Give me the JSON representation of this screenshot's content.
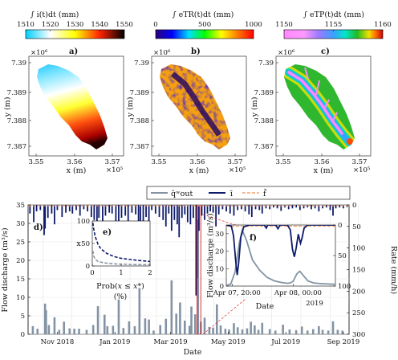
{
  "chart_data": [
    {
      "type": "heatmap",
      "panel": "a)",
      "colorbar_title": "∫ i(t)dt (mm)",
      "colorbar_ticks": [
        "1510",
        "1520",
        "1530",
        "1540",
        "1550"
      ],
      "colorbar_range": [
        1510,
        1550
      ],
      "colormap": [
        "#00cfff",
        "#ffffff",
        "#ffff00",
        "#ff2200",
        "#000000"
      ],
      "xlabel": "x (m)",
      "ylabel": "y (m)",
      "x_ticks": [
        "3.55",
        "3.56",
        "3.57"
      ],
      "x_exponent": "×10⁵",
      "y_ticks": [
        "7.39",
        "7.389",
        "7.388",
        "7.387"
      ],
      "y_exponent": "×10⁶"
    },
    {
      "type": "heatmap",
      "panel": "b)",
      "colorbar_title": "∫ eTR(t)dt (mm)",
      "colorbar_ticks": [
        "0",
        "500",
        "1000"
      ],
      "colorbar_range": [
        0,
        1000
      ],
      "colormap": [
        "#2a007a",
        "#0000ff",
        "#00e0ff",
        "#00ff00",
        "#ffff00",
        "#ff7700",
        "#ff0000"
      ],
      "xlabel": "x (m)",
      "ylabel": "y (m)",
      "x_ticks": [
        "3.55",
        "3.56",
        "3.57"
      ],
      "x_exponent": "×10⁵",
      "y_ticks": [
        "7.39",
        "7.389",
        "7.388",
        "7.387"
      ],
      "y_exponent": "×10⁶"
    },
    {
      "type": "heatmap",
      "panel": "c)",
      "colorbar_title": "∫ eTP(t)dt (mm)",
      "colorbar_ticks": [
        "1150",
        "1155",
        "1160"
      ],
      "colorbar_range": [
        1150,
        1160
      ],
      "colormap": [
        "#ff88ff",
        "#9b7bff",
        "#3aa0ff",
        "#00e6c8",
        "#22bb22",
        "#f5e000",
        "#ff6a00",
        "#cc0000"
      ],
      "xlabel": "x (m)",
      "ylabel": "y (m)",
      "x_ticks": [
        "3.55",
        "3.56",
        "3.57"
      ],
      "x_exponent": "×10⁵",
      "y_ticks": [
        "7.39",
        "7.389",
        "7.388",
        "7.387"
      ],
      "y_exponent": "×10⁶"
    },
    {
      "type": "bar",
      "panel": "d)",
      "legend": [
        "q̂ʷout",
        "ī",
        "f̄"
      ],
      "colors": {
        "discharge": "#8393a4",
        "rain": "#0d1a6b",
        "f": "#f2a36a",
        "highlight": "#e03030"
      },
      "xlabel": "Date",
      "ylabel": "Flow discharge (m³/s)",
      "ylabel_right": "Rate (mm/h)",
      "ylim": [
        0,
        35
      ],
      "ylim_right": [
        300,
        0
      ],
      "y_ticks": [
        "0",
        "5",
        "10",
        "15",
        "20",
        "25",
        "30",
        "35"
      ],
      "y_ticks_right": [
        "0",
        "50",
        "100",
        "150",
        "200",
        "250",
        "300"
      ],
      "x_ticks": [
        "Nov 2018",
        "Jan 2019",
        "Mar 2019",
        "May 2019",
        "Jul 2019",
        "Sep 2019"
      ],
      "x_range_days": [
        0,
        340
      ],
      "discharge_peaks": [
        [
          5,
          2.2
        ],
        [
          10,
          1.5
        ],
        [
          18,
          8.3
        ],
        [
          19,
          6.5
        ],
        [
          22,
          2.5
        ],
        [
          28,
          4.6
        ],
        [
          33,
          1.2
        ],
        [
          38,
          3.4
        ],
        [
          44,
          1.6
        ],
        [
          49,
          1.5
        ],
        [
          54,
          1.5
        ],
        [
          62,
          1.2
        ],
        [
          69,
          2.5
        ],
        [
          74,
          7.6
        ],
        [
          81,
          5.3
        ],
        [
          84,
          2.2
        ],
        [
          90,
          2.3
        ],
        [
          96,
          9.4
        ],
        [
          101,
          1.7
        ],
        [
          107,
          3.5
        ],
        [
          113,
          2.2
        ],
        [
          118,
          12.5
        ],
        [
          124,
          4.3
        ],
        [
          128,
          4.0
        ],
        [
          133,
          1.0
        ],
        [
          140,
          2.5
        ],
        [
          146,
          4.2
        ],
        [
          152,
          14.6
        ],
        [
          157,
          5.6
        ],
        [
          161,
          8.6
        ],
        [
          166,
          3.7
        ],
        [
          171,
          2.3
        ],
        [
          173,
          7.5
        ],
        [
          177,
          5.4
        ],
        [
          180,
          31
        ],
        [
          183,
          3.4
        ],
        [
          187,
          4.5
        ],
        [
          192,
          2.0
        ],
        [
          196,
          1.8
        ],
        [
          200,
          8.1
        ],
        [
          204,
          2.4
        ],
        [
          209,
          1.5
        ],
        [
          213,
          1.3
        ],
        [
          218,
          3.0
        ],
        [
          222,
          1.9
        ],
        [
          227,
          1.3
        ],
        [
          232,
          1.6
        ],
        [
          236,
          3.4
        ],
        [
          240,
          2.4
        ],
        [
          244,
          1.2
        ],
        [
          248,
          3.1
        ],
        [
          256,
          1.4
        ],
        [
          262,
          1.0
        ],
        [
          270,
          2.6
        ],
        [
          277,
          1.3
        ],
        [
          284,
          1.1
        ],
        [
          290,
          2.1
        ],
        [
          296,
          1.0
        ],
        [
          302,
          1.4
        ],
        [
          308,
          2.2
        ],
        [
          312,
          1.2
        ],
        [
          318,
          1.0
        ],
        [
          323,
          3.5
        ],
        [
          328,
          1.2
        ],
        [
          333,
          1.0
        ]
      ],
      "rain_spikes": [
        [
          2,
          20
        ],
        [
          6,
          40
        ],
        [
          9,
          15
        ],
        [
          13,
          12
        ],
        [
          17,
          70
        ],
        [
          18,
          55
        ],
        [
          21,
          30
        ],
        [
          25,
          20
        ],
        [
          28,
          45
        ],
        [
          31,
          12
        ],
        [
          36,
          28
        ],
        [
          40,
          18
        ],
        [
          44,
          15
        ],
        [
          47,
          20
        ],
        [
          51,
          12
        ],
        [
          55,
          25
        ],
        [
          59,
          10
        ],
        [
          63,
          15
        ],
        [
          67,
          28
        ],
        [
          70,
          35
        ],
        [
          73,
          58
        ],
        [
          75,
          30
        ],
        [
          79,
          42
        ],
        [
          82,
          25
        ],
        [
          86,
          18
        ],
        [
          89,
          20
        ],
        [
          93,
          40
        ],
        [
          96,
          85
        ],
        [
          99,
          30
        ],
        [
          103,
          25
        ],
        [
          106,
          45
        ],
        [
          110,
          18
        ],
        [
          114,
          22
        ],
        [
          117,
          110
        ],
        [
          119,
          40
        ],
        [
          122,
          55
        ],
        [
          125,
          28
        ],
        [
          128,
          40
        ],
        [
          131,
          12
        ],
        [
          135,
          20
        ],
        [
          139,
          28
        ],
        [
          143,
          35
        ],
        [
          146,
          50
        ],
        [
          149,
          20
        ],
        [
          152,
          60
        ],
        [
          155,
          35
        ],
        [
          158,
          45
        ],
        [
          160,
          75
        ],
        [
          163,
          30
        ],
        [
          166,
          22
        ],
        [
          169,
          40
        ],
        [
          172,
          45
        ],
        [
          175,
          30
        ],
        [
          178,
          210
        ],
        [
          179,
          170
        ],
        [
          181,
          60
        ],
        [
          184,
          25
        ],
        [
          187,
          35
        ],
        [
          190,
          20
        ],
        [
          193,
          15
        ],
        [
          196,
          18
        ],
        [
          199,
          50
        ],
        [
          202,
          22
        ],
        [
          206,
          10
        ],
        [
          210,
          15
        ],
        [
          214,
          20
        ],
        [
          218,
          25
        ],
        [
          222,
          12
        ],
        [
          226,
          10
        ],
        [
          230,
          15
        ],
        [
          234,
          22
        ],
        [
          237,
          28
        ],
        [
          241,
          10
        ],
        [
          245,
          12
        ],
        [
          248,
          20
        ],
        [
          252,
          8
        ],
        [
          256,
          10
        ],
        [
          260,
          6
        ],
        [
          264,
          8
        ],
        [
          268,
          14
        ],
        [
          272,
          6
        ],
        [
          276,
          10
        ],
        [
          280,
          8
        ],
        [
          284,
          6
        ],
        [
          288,
          12
        ],
        [
          292,
          8
        ],
        [
          296,
          6
        ],
        [
          300,
          10
        ],
        [
          304,
          8
        ],
        [
          308,
          15
        ],
        [
          312,
          8
        ],
        [
          316,
          6
        ],
        [
          320,
          12
        ],
        [
          323,
          25
        ],
        [
          326,
          8
        ],
        [
          330,
          6
        ],
        [
          334,
          8
        ],
        [
          338,
          5
        ]
      ],
      "f_level": 2,
      "highlight_window_days": [
        179,
        183
      ]
    },
    {
      "type": "line",
      "panel": "e)",
      "ylabel": "x",
      "xlabel": "Prob(x ≤ x*) (%)",
      "x_ticks": [
        "0",
        "1",
        "2"
      ],
      "y_ticks": [
        "0",
        "50",
        "100"
      ],
      "xlim": [
        0,
        2
      ],
      "ylim": [
        0,
        100
      ],
      "series": [
        {
          "style": "dashed-navy",
          "points": [
            [
              0.02,
              96
            ],
            [
              0.05,
              82
            ],
            [
              0.1,
              66
            ],
            [
              0.2,
              48
            ],
            [
              0.3,
              38
            ],
            [
              0.5,
              28
            ],
            [
              0.75,
              21
            ],
            [
              1.0,
              17
            ],
            [
              1.5,
              13
            ],
            [
              2.0,
              10
            ]
          ]
        },
        {
          "style": "dashed-gray",
          "points": [
            [
              0.02,
              34
            ],
            [
              0.05,
              22
            ],
            [
              0.1,
              15
            ],
            [
              0.2,
              10
            ],
            [
              0.4,
              7
            ],
            [
              0.7,
              5
            ],
            [
              1.0,
              4
            ],
            [
              1.5,
              3
            ],
            [
              2.0,
              3
            ]
          ]
        }
      ]
    },
    {
      "type": "line",
      "panel": "f)",
      "ylabel": "Flow discharge (m³/s)",
      "ylabel_right": "Rate (mm/h)",
      "xlabel": "Date",
      "x_ticks": [
        "Apr 07, 20:00",
        "Apr 08, 00:00"
      ],
      "x_suffix": "2019",
      "y_ticks": [
        "0",
        "10",
        "20",
        "30"
      ],
      "y_ticks_right": [
        "0",
        "50",
        "100"
      ],
      "ylim": [
        0,
        35
      ],
      "ylim_right": [
        100,
        0
      ],
      "series": [
        {
          "name": "q",
          "points": [
            [
              0.0,
              0.5
            ],
            [
              0.3,
              1
            ],
            [
              0.6,
              8
            ],
            [
              0.9,
              25
            ],
            [
              1.1,
              32
            ],
            [
              1.4,
              26
            ],
            [
              1.8,
              15
            ],
            [
              2.3,
              9
            ],
            [
              2.8,
              5
            ],
            [
              3.3,
              3
            ],
            [
              3.8,
              2
            ],
            [
              4.2,
              1.6
            ],
            [
              4.4,
              1.8
            ],
            [
              4.6,
              2.8
            ],
            [
              4.85,
              7
            ],
            [
              5.05,
              8.5
            ],
            [
              5.3,
              6
            ],
            [
              5.6,
              3
            ],
            [
              6.0,
              1.8
            ],
            [
              6.5,
              1.4
            ],
            [
              7.0,
              1.2
            ],
            [
              7.5,
              1
            ]
          ]
        },
        {
          "name": "rain",
          "points": [
            [
              0.0,
              0
            ],
            [
              0.35,
              2
            ],
            [
              0.5,
              18
            ],
            [
              0.65,
              60
            ],
            [
              0.75,
              82
            ],
            [
              0.85,
              62
            ],
            [
              1.0,
              20
            ],
            [
              1.2,
              3
            ],
            [
              1.6,
              0
            ],
            [
              2.6,
              0
            ],
            [
              2.75,
              5
            ],
            [
              2.85,
              0
            ],
            [
              3.4,
              0
            ],
            [
              3.55,
              6
            ],
            [
              3.7,
              0
            ],
            [
              4.2,
              0
            ],
            [
              4.4,
              8
            ],
            [
              4.55,
              40
            ],
            [
              4.68,
              52
            ],
            [
              4.8,
              38
            ],
            [
              4.95,
              15
            ],
            [
              5.1,
              30
            ],
            [
              5.2,
              22
            ],
            [
              5.35,
              5
            ],
            [
              5.6,
              0
            ],
            [
              7.5,
              0
            ]
          ]
        }
      ],
      "f_level": 2,
      "t_range": [
        0,
        7.5
      ]
    }
  ]
}
